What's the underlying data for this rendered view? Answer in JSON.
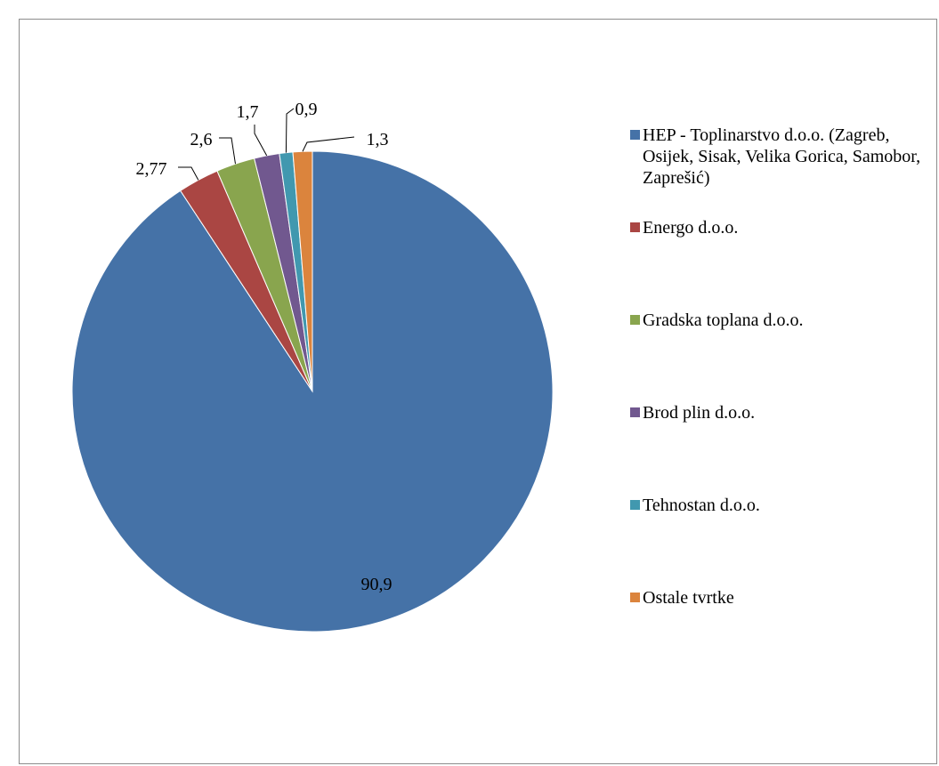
{
  "chart_data": {
    "type": "pie",
    "title": "",
    "legend_position": "right",
    "start_angle_deg": 0,
    "direction": "clockwise",
    "slices": [
      {
        "label": "HEP - Toplinarstvo d.o.o. (Zagreb, Osijek, Sisak, Velika Gorica, Samobor, Zaprešić)",
        "value": 90.9,
        "value_label": "90,9",
        "color": "#4572a7"
      },
      {
        "label": "Energo d.o.o.",
        "value": 2.77,
        "value_label": "2,77",
        "color": "#aa4643"
      },
      {
        "label": "Gradska toplana d.o.o.",
        "value": 2.6,
        "value_label": "2,6",
        "color": "#89a54e"
      },
      {
        "label": "Brod plin d.o.o.",
        "value": 1.7,
        "value_label": "1,7",
        "color": "#71588f"
      },
      {
        "label": "Tehnostan d.o.o.",
        "value": 0.9,
        "value_label": "0,9",
        "color": "#4198af"
      },
      {
        "label": "Ostale tvrtke",
        "value": 1.3,
        "value_label": "1,3",
        "color": "#db843d"
      }
    ]
  }
}
